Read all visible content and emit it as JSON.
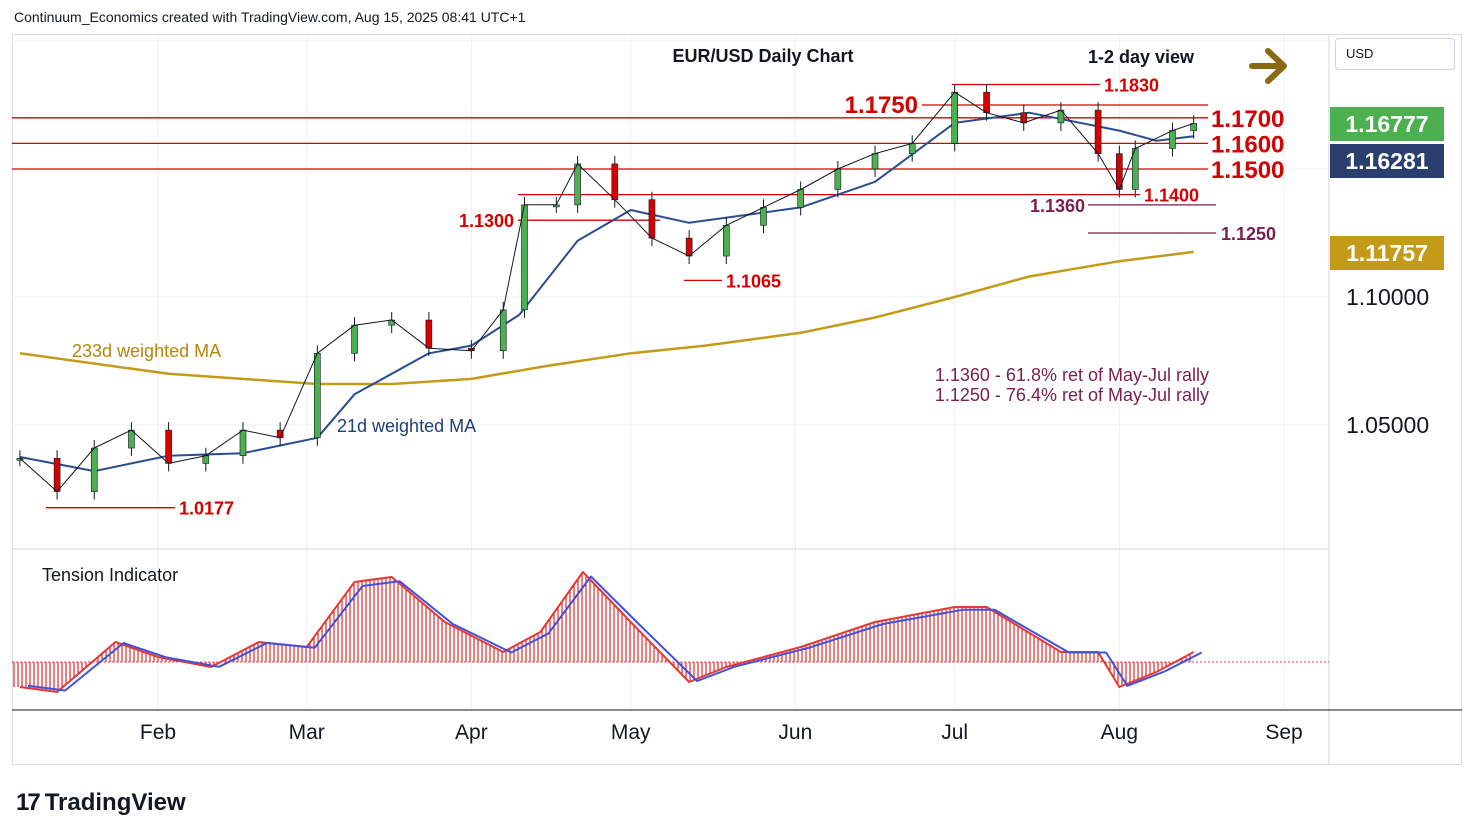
{
  "header": {
    "text": "Continuum_Economics created with TradingView.com, Aug 15, 2025 08:41 UTC+1"
  },
  "currency": "USD",
  "chart_data": {
    "type": "line",
    "title": "EUR/USD Daily Chart",
    "subtitle": "1-2 day view",
    "view_direction": "sideways (right arrow)",
    "y_axis": {
      "ticks": [
        "1.10000",
        "1.05000"
      ],
      "ylim": [
        1.0,
        1.2
      ]
    },
    "x_axis": {
      "ticks": [
        "Feb",
        "Mar",
        "Apr",
        "May",
        "Jun",
        "Jul",
        "Aug",
        "Sep"
      ]
    },
    "price_badges": [
      {
        "value": "1.16777",
        "color": "#4caf50"
      },
      {
        "value": "1.16281",
        "color": "#2a3f6e"
      },
      {
        "value": "1.11757",
        "color": "#c49b18"
      }
    ],
    "levels": [
      {
        "label": "1.1830",
        "value": 1.183,
        "kind": "resistance"
      },
      {
        "label": "1.1750",
        "value": 1.175,
        "kind": "resistance"
      },
      {
        "label": "1.1700",
        "value": 1.17,
        "kind": "resistance"
      },
      {
        "label": "1.1600",
        "value": 1.16,
        "kind": "support"
      },
      {
        "label": "1.1500",
        "value": 1.15,
        "kind": "support"
      },
      {
        "label": "1.1400",
        "value": 1.14,
        "kind": "support"
      },
      {
        "label": "1.1360",
        "value": 1.136,
        "kind": "support"
      },
      {
        "label": "1.1300",
        "value": 1.13,
        "kind": "support"
      },
      {
        "label": "1.1250",
        "value": 1.125,
        "kind": "support"
      },
      {
        "label": "1.1065",
        "value": 1.1065,
        "kind": "support"
      },
      {
        "label": "1.0177",
        "value": 1.0177,
        "kind": "support"
      }
    ],
    "annotations": [
      "1.1360 - 61.8% ret of May-Jul rally",
      "1.1250 - 76.4% ret of May-Jul rally"
    ],
    "series": [
      {
        "name": "233d weighted MA",
        "color": "#c49b18",
        "x": [
          "Jan 6",
          "Feb 3",
          "Mar 3",
          "Mar 17",
          "Apr 1",
          "Apr 15",
          "May 1",
          "May 15",
          "Jun 2",
          "Jun 16",
          "Jul 1",
          "Jul 15",
          "Aug 1",
          "Aug 15"
        ],
        "values": [
          1.078,
          1.07,
          1.066,
          1.066,
          1.068,
          1.073,
          1.078,
          1.081,
          1.086,
          1.092,
          1.1,
          1.108,
          1.114,
          1.1176
        ]
      },
      {
        "name": "21d weighted MA",
        "color": "#2a4d8f",
        "x": [
          "Jan 6",
          "Jan 20",
          "Feb 3",
          "Feb 17",
          "Mar 3",
          "Mar 10",
          "Mar 24",
          "Apr 1",
          "Apr 10",
          "Apr 21",
          "May 1",
          "May 12",
          "Jun 2",
          "Jun 16",
          "Jul 1",
          "Jul 15",
          "Aug 1",
          "Aug 8",
          "Aug 15"
        ],
        "values": [
          1.0375,
          1.032,
          1.038,
          1.039,
          1.045,
          1.062,
          1.078,
          1.081,
          1.093,
          1.122,
          1.134,
          1.129,
          1.135,
          1.145,
          1.168,
          1.172,
          1.165,
          1.161,
          1.1628
        ]
      },
      {
        "name": "EUR/USD close",
        "color": "#2e7d32",
        "x": [
          "Jan 6",
          "Jan 13",
          "Jan 20",
          "Jan 27",
          "Feb 3",
          "Feb 10",
          "Feb 17",
          "Feb 24",
          "Mar 3",
          "Mar 10",
          "Mar 17",
          "Mar 24",
          "Apr 1",
          "Apr 7",
          "Apr 11",
          "Apr 17",
          "Apr 21",
          "Apr 28",
          "May 5",
          "May 12",
          "May 19",
          "May 26",
          "Jun 2",
          "Jun 9",
          "Jun 16",
          "Jun 23",
          "Jul 1",
          "Jul 7",
          "Jul 14",
          "Jul 21",
          "Jul 28",
          "Aug 1",
          "Aug 4",
          "Aug 11",
          "Aug 15"
        ],
        "values": [
          1.037,
          1.024,
          1.041,
          1.048,
          1.035,
          1.038,
          1.048,
          1.045,
          1.078,
          1.089,
          1.091,
          1.08,
          1.079,
          1.095,
          1.136,
          1.136,
          1.152,
          1.138,
          1.123,
          1.116,
          1.128,
          1.135,
          1.142,
          1.15,
          1.156,
          1.16,
          1.18,
          1.172,
          1.168,
          1.173,
          1.156,
          1.142,
          1.158,
          1.165,
          1.1678
        ]
      }
    ],
    "tension_indicator": {
      "title": "Tension Indicator",
      "x": [
        "Jan 6",
        "Jan 13",
        "Jan 24",
        "Feb 1",
        "Feb 11",
        "Feb 20",
        "Mar 1",
        "Mar 10",
        "Mar 17",
        "Mar 27",
        "Apr 7",
        "Apr 14",
        "Apr 22",
        "May 1",
        "May 12",
        "May 19",
        "Jun 2",
        "Jun 16",
        "Jul 1",
        "Jul 7",
        "Jul 21",
        "Jul 28",
        "Aug 1",
        "Aug 8",
        "Aug 15"
      ],
      "values": [
        -0.25,
        -0.3,
        0.2,
        0.05,
        -0.05,
        0.2,
        0.15,
        0.8,
        0.85,
        0.4,
        0.1,
        0.3,
        0.9,
        0.4,
        -0.2,
        -0.05,
        0.15,
        0.4,
        0.55,
        0.55,
        0.1,
        0.1,
        -0.25,
        -0.1,
        0.1
      ]
    }
  }
}
